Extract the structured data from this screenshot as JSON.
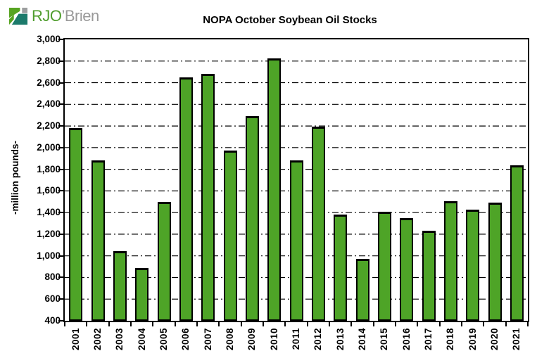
{
  "logo": {
    "text_primary": "RJO",
    "text_secondary": "’Brien",
    "colors": {
      "green": "#57a421",
      "teal": "#1c7a6b",
      "gray": "#9c9e9f"
    }
  },
  "chart_data": {
    "type": "bar",
    "title": "NOPA October Soybean Oil Stocks",
    "xlabel": "",
    "ylabel": "-million pounds-",
    "categories": [
      "2001",
      "2002",
      "2003",
      "2004",
      "2005",
      "2006",
      "2007",
      "2008",
      "2009",
      "2010",
      "2011",
      "2012",
      "2013",
      "2014",
      "2015",
      "2016",
      "2017",
      "2018",
      "2019",
      "2020",
      "2021"
    ],
    "values": [
      2180,
      1885,
      1045,
      885,
      1500,
      2650,
      2685,
      1975,
      2290,
      2825,
      1880,
      2195,
      1380,
      970,
      1410,
      1350,
      1230,
      1505,
      1430,
      1490,
      1835
    ],
    "ylim": [
      400,
      3000
    ],
    "ytick_step": 200,
    "ytick_labels": [
      "400",
      "600",
      "800",
      "1,000",
      "1,200",
      "1,400",
      "1,600",
      "1,800",
      "2,000",
      "2,200",
      "2,400",
      "2,600",
      "2,800",
      "3,000"
    ],
    "grid": "horizontal-dash-dot",
    "legend": "none",
    "bar_color": "#4ea427",
    "bar_border_color": "#000000"
  }
}
